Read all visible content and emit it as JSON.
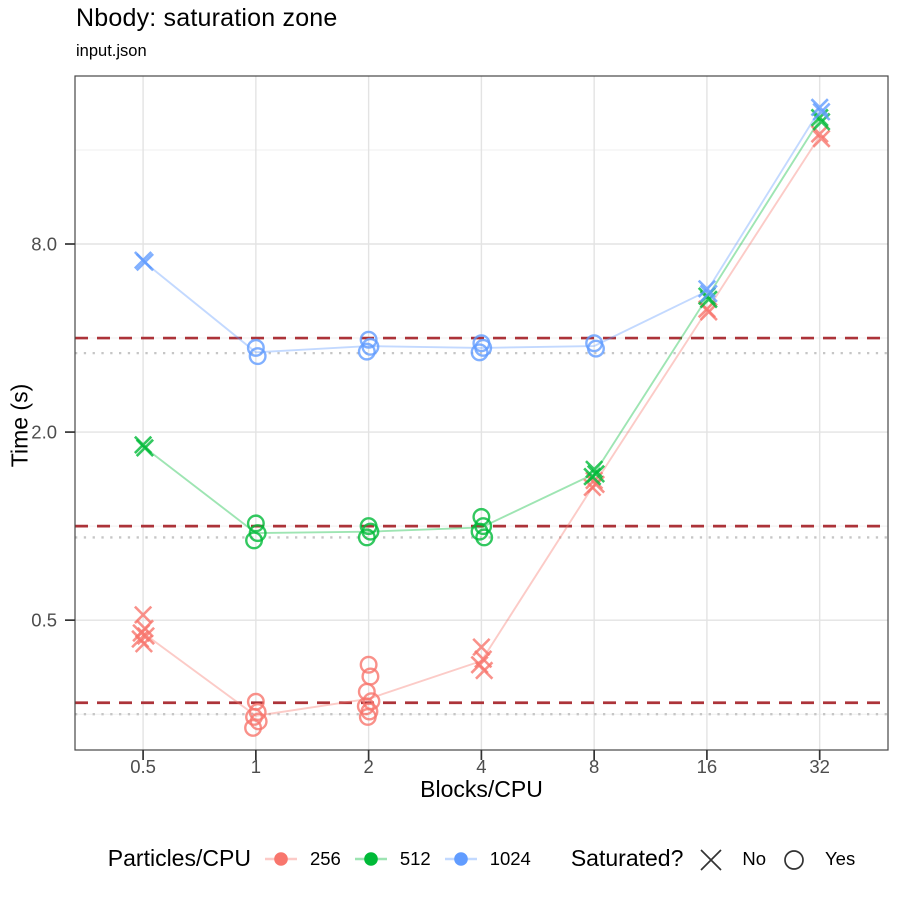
{
  "chart_data": {
    "type": "scatter",
    "title": "Nbody: saturation zone",
    "subtitle": "input.json",
    "xlabel": "Blocks/CPU",
    "ylabel": "Time (s)",
    "x_scale": "log2",
    "y_scale": "log10",
    "x_domain": [
      0.329,
      48.7
    ],
    "y_domain": [
      0.192,
      27.6
    ],
    "x_ticks": [
      {
        "v": 0.5,
        "label": "0.5"
      },
      {
        "v": 1,
        "label": "1"
      },
      {
        "v": 2,
        "label": "2"
      },
      {
        "v": 4,
        "label": "4"
      },
      {
        "v": 8,
        "label": "8"
      },
      {
        "v": 16,
        "label": "16"
      },
      {
        "v": 32,
        "label": "32"
      }
    ],
    "y_ticks": [
      {
        "v": 0.5,
        "label": "0.5"
      },
      {
        "v": 2.0,
        "label": "2.0"
      },
      {
        "v": 8.0,
        "label": "8.0"
      }
    ],
    "y_minor": [
      0.25,
      1,
      4,
      16
    ],
    "grid": {
      "major_color": "#e3e3e3",
      "minor_color": "#efefef"
    },
    "panel_border_color": "#464646",
    "hlines": {
      "dashed": {
        "color": "#AC3339",
        "values": [
          4.0,
          1.0,
          0.272
        ]
      },
      "dotted": {
        "color": "#c6c6c6",
        "values": [
          3.58,
          0.92,
          0.25
        ]
      }
    },
    "series": [
      {
        "name": "256",
        "color": "#F8766D",
        "clusters": [
          {
            "x": 0.5,
            "saturated": false,
            "times": [
              0.52,
              0.47,
              0.455,
              0.445,
              0.435,
              0.42
            ]
          },
          {
            "x": 1,
            "saturated": true,
            "times": [
              0.274,
              0.254,
              0.245,
              0.237,
              0.226
            ]
          },
          {
            "x": 2,
            "saturated": true,
            "times": [
              0.36,
              0.33,
              0.295,
              0.275,
              0.265,
              0.255,
              0.245
            ]
          },
          {
            "x": 4,
            "saturated": false,
            "times": [
              0.41,
              0.375,
              0.36,
              0.345
            ]
          },
          {
            "x": 8,
            "saturated": false,
            "times": [
              1.4,
              1.36,
              1.33
            ]
          },
          {
            "x": 16,
            "saturated": false,
            "times": [
              4.95,
              4.85
            ]
          },
          {
            "x": 32,
            "saturated": false,
            "times": [
              18.0,
              17.4
            ]
          }
        ],
        "mean_line": [
          [
            0.5,
            0.455
          ],
          [
            1,
            0.247
          ],
          [
            2,
            0.28
          ],
          [
            4,
            0.37
          ],
          [
            8,
            1.36
          ],
          [
            16,
            4.9
          ],
          [
            32,
            17.7
          ]
        ]
      },
      {
        "name": "512",
        "color": "#00BA38",
        "clusters": [
          {
            "x": 0.5,
            "saturated": false,
            "times": [
              1.82,
              1.78
            ]
          },
          {
            "x": 1,
            "saturated": true,
            "times": [
              1.02,
              0.95,
              0.9
            ]
          },
          {
            "x": 2,
            "saturated": true,
            "times": [
              1.0,
              0.96,
              0.92
            ]
          },
          {
            "x": 4,
            "saturated": true,
            "times": [
              1.07,
              1.0,
              0.96,
              0.92
            ]
          },
          {
            "x": 8,
            "saturated": false,
            "times": [
              1.52,
              1.47,
              1.44
            ]
          },
          {
            "x": 16,
            "saturated": false,
            "times": [
              5.45,
              5.32
            ]
          },
          {
            "x": 32,
            "saturated": false,
            "times": [
              20.3,
              19.7
            ]
          }
        ],
        "mean_line": [
          [
            0.5,
            1.8
          ],
          [
            1,
            0.95
          ],
          [
            2,
            0.96
          ],
          [
            4,
            0.99
          ],
          [
            8,
            1.47
          ],
          [
            16,
            5.38
          ],
          [
            32,
            20.0
          ]
        ]
      },
      {
        "name": "1024",
        "color": "#619CFF",
        "clusters": [
          {
            "x": 0.5,
            "saturated": false,
            "times": [
              7.1,
              7.0
            ]
          },
          {
            "x": 1,
            "saturated": true,
            "times": [
              3.72,
              3.5
            ]
          },
          {
            "x": 2,
            "saturated": true,
            "times": [
              3.95,
              3.75,
              3.62
            ]
          },
          {
            "x": 4,
            "saturated": true,
            "times": [
              3.85,
              3.72,
              3.6
            ]
          },
          {
            "x": 8,
            "saturated": true,
            "times": [
              3.85,
              3.7
            ]
          },
          {
            "x": 16,
            "saturated": false,
            "times": [
              5.75,
              5.55
            ]
          },
          {
            "x": 32,
            "saturated": false,
            "times": [
              21.9,
              21.2
            ]
          }
        ],
        "mean_line": [
          [
            0.5,
            7.05
          ],
          [
            1,
            3.6
          ],
          [
            2,
            3.77
          ],
          [
            4,
            3.72
          ],
          [
            8,
            3.77
          ],
          [
            16,
            5.65
          ],
          [
            32,
            21.5
          ]
        ]
      }
    ],
    "legend": {
      "color_title": "Particles/CPU",
      "shape_title": "Saturated?",
      "shape_items": [
        {
          "label": "No",
          "shape": "x"
        },
        {
          "label": "Yes",
          "shape": "circle"
        }
      ]
    }
  }
}
